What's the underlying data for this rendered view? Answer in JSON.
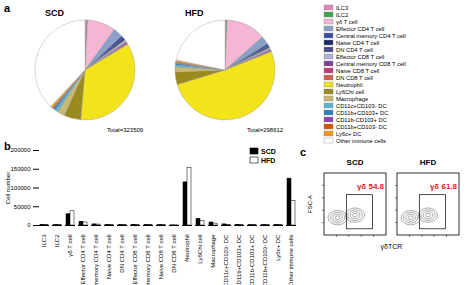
{
  "chart_data": [
    {
      "type": "pie",
      "panel": "a",
      "legend": "right",
      "categories": [
        "ILC3",
        "ILC2",
        "γδ T cell",
        "Effector CD4 T cell",
        "Central memory CD4 T cell",
        "Naive CD4 T cell",
        "DN CD4 T cell",
        "Effector CD8 T cell",
        "Central memory CD8 T cell",
        "Naive CD8 T cell",
        "DN CD8 T cell",
        "Neutrophil",
        "Ly6Chi cell",
        "Macrophage",
        "CD11c+CD103- DC",
        "CD11b+CD103+ DC",
        "CD11b-CD103+ DC",
        "CD11b+CD103- DC",
        "Ly6c+ DC",
        "Other immune cells"
      ],
      "colors": [
        "#e585b5",
        "#3aa64a",
        "#f4b6d2",
        "#8aa0c8",
        "#3b4fa0",
        "#1c2a6b",
        "#4a4a8a",
        "#b0b0d8",
        "#7a3f9a",
        "#c03a7a",
        "#d0604a",
        "#f2e31b",
        "#9a8a1e",
        "#c8b870",
        "#5ab4d6",
        "#2a7fb8",
        "#8e44ad",
        "#d35400",
        "#f39c12",
        "#ffffff"
      ],
      "pies": [
        {
          "title": "SCD",
          "annotation": "Total=323509",
          "values": [
            2000,
            1000,
            30000,
            10000,
            3000,
            2000,
            1000,
            2000,
            1500,
            1000,
            500,
            115000,
            18000,
            8000,
            3000,
            2000,
            1000,
            1000,
            2000,
            125000
          ]
        },
        {
          "title": "HFD",
          "annotation": "Total=298612",
          "values": [
            1500,
            800,
            38000,
            8000,
            2500,
            1500,
            800,
            1500,
            1000,
            800,
            500,
            153000,
            12000,
            5000,
            2000,
            1500,
            800,
            800,
            1500,
            65000
          ]
        }
      ]
    },
    {
      "type": "bar",
      "panel": "b",
      "legend": "top-right",
      "y_label": "Cell number",
      "categories": [
        "ILC3",
        "ILC2",
        "γδ T cell",
        "Effector CD4 T cell",
        "Central memory CD4 T cell",
        "Naive CD4 T cell",
        "DN CD4 T cell",
        "Effector CD8 T cell",
        "Central memory CD8 T cell",
        "Naive CD8 T cell",
        "DN CD8 T cell",
        "Neutrophil",
        "Ly6Chi cell",
        "Macrophage",
        "CD11c+CD103- DC",
        "CD11b+CD103+ DC",
        "CD11b-CD103+ DC",
        "CD11b+CD103- DC",
        "Ly6c+ DC",
        "Other immune cells"
      ],
      "series": [
        {
          "name": "SCD",
          "color": "#000000",
          "values": [
            2000,
            1000,
            30000,
            10000,
            3000,
            2000,
            1000,
            2000,
            1500,
            1000,
            500,
            115000,
            18000,
            8000,
            3000,
            2000,
            1000,
            1000,
            2000,
            125000
          ]
        },
        {
          "name": "HFD",
          "color": "#ffffff",
          "values": [
            1500,
            800,
            38000,
            8000,
            2500,
            1500,
            800,
            1500,
            1000,
            800,
            500,
            153000,
            12000,
            5000,
            2000,
            1500,
            800,
            800,
            1500,
            65000
          ]
        }
      ],
      "ylim": [
        0,
        200000
      ],
      "yticks": [
        0,
        50000,
        100000,
        150000,
        200000
      ]
    },
    {
      "type": "flow",
      "panel": "c",
      "x_label": "γδTCR",
      "y_label": "FSC-A",
      "tick_labels": false,
      "samples": [
        {
          "title": "SCD",
          "gate": {
            "name": "γδ",
            "percent": 54.8
          }
        },
        {
          "title": "HFD",
          "gate": {
            "name": "γδ",
            "percent": 61.8
          }
        }
      ]
    }
  ]
}
